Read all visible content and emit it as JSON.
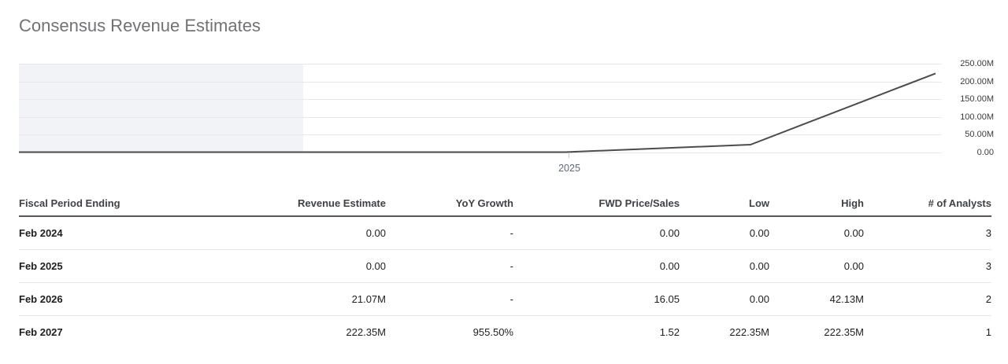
{
  "title": "Consensus Revenue Estimates",
  "chart_data": {
    "type": "line",
    "title": "Consensus Revenue Estimates",
    "xlabel": "",
    "ylabel": "",
    "legend": "none",
    "grid": "horizontal",
    "y_axis": {
      "side": "right",
      "ticks": [
        "250.00M",
        "200.00M",
        "150.00M",
        "100.00M",
        "50.00M",
        "0.00"
      ],
      "max_m": 250,
      "min_m": 0
    },
    "x_axis": {
      "tick_label": "2025"
    },
    "shaded_history_region": "left portion of plot shaded light gray (historical period)",
    "colors": {
      "line": "#4a4c4f",
      "shade": "#f2f3f7",
      "gridline": "#e8e8e8"
    },
    "series": [
      {
        "name": "Revenue Estimate",
        "x": [
          "history-start",
          "Feb 2024",
          "Feb 2025",
          "Feb 2026",
          "Feb 2027"
        ],
        "values_m": [
          0,
          0,
          0,
          21.07,
          222.35
        ]
      }
    ]
  },
  "table": {
    "columns": [
      "Fiscal Period Ending",
      "Revenue Estimate",
      "YoY Growth",
      "FWD Price/Sales",
      "Low",
      "High",
      "# of Analysts"
    ],
    "rows": [
      [
        "Feb 2024",
        "0.00",
        "-",
        "0.00",
        "0.00",
        "0.00",
        "3"
      ],
      [
        "Feb 2025",
        "0.00",
        "-",
        "0.00",
        "0.00",
        "0.00",
        "3"
      ],
      [
        "Feb 2026",
        "21.07M",
        "-",
        "16.05",
        "0.00",
        "42.13M",
        "2"
      ],
      [
        "Feb 2027",
        "222.35M",
        "955.50%",
        "1.52",
        "222.35M",
        "222.35M",
        "1"
      ]
    ]
  }
}
